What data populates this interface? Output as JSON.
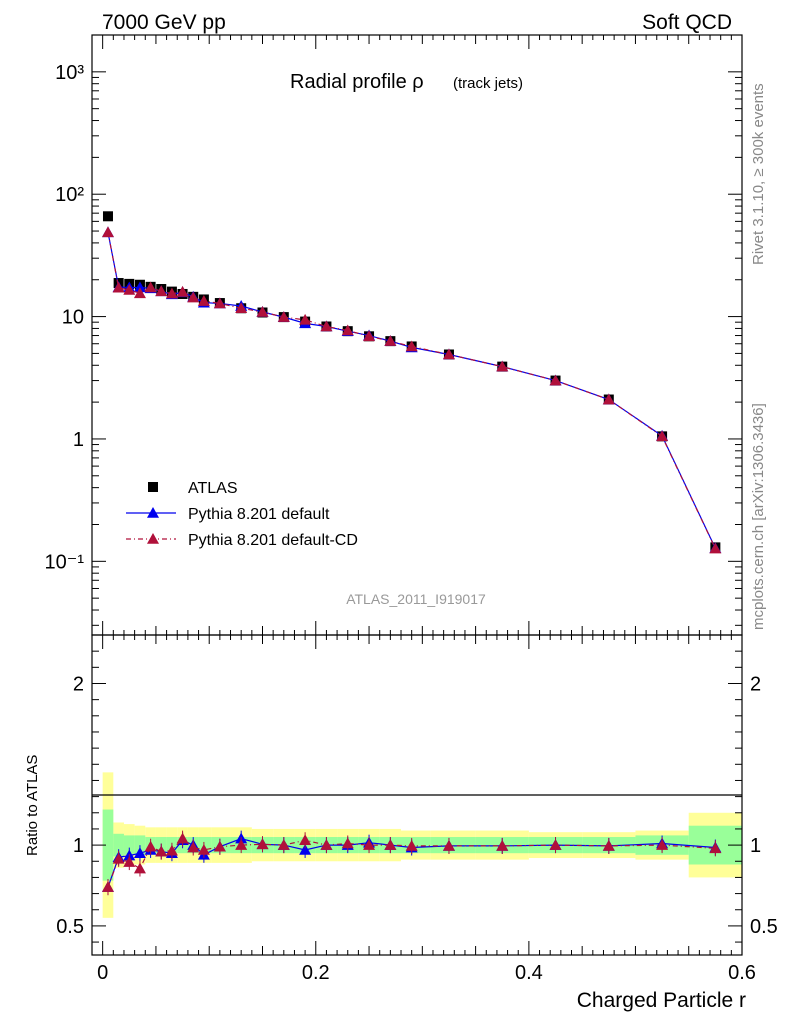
{
  "header": {
    "left": "7000 GeV pp",
    "right": "Soft QCD"
  },
  "side_labels": {
    "rivet": "Rivet 3.1.10, ≥ 300k events",
    "mcplots": "mcplots.cern.ch [arXiv:1306.3436]"
  },
  "chart_data": {
    "type": "line",
    "title_main": "Radial profile ρ",
    "title_sub": "(track jets)",
    "analysis_id": "ATLAS_2011_I919017",
    "xlabel": "Charged Particle r",
    "ylabel_ratio": "Ratio to ATLAS",
    "x_range": [
      -0.01,
      0.6
    ],
    "y_range_main": [
      0.025,
      2000
    ],
    "y_scale_main": "log",
    "y_range_ratio": [
      0.32,
      2.3
    ],
    "x_tick_labels": [
      "0",
      "0.2",
      "0.4",
      "0.6"
    ],
    "y_tick_labels_main": [
      "10⁻¹",
      "1",
      "10",
      "10²",
      "10³"
    ],
    "y_tick_labels_ratio": [
      "0.5",
      "1",
      "2"
    ],
    "legend_position": "lower-left",
    "x": [
      0.005,
      0.015,
      0.025,
      0.035,
      0.045,
      0.055,
      0.065,
      0.075,
      0.085,
      0.095,
      0.11,
      0.13,
      0.15,
      0.17,
      0.19,
      0.21,
      0.23,
      0.25,
      0.27,
      0.29,
      0.325,
      0.375,
      0.425,
      0.475,
      0.525,
      0.575
    ],
    "series": [
      {
        "name": "ATLAS",
        "color": "#000000",
        "marker": "square",
        "values": [
          66,
          18.8,
          18.5,
          18.2,
          17.5,
          16.8,
          16.0,
          15.3,
          14.5,
          13.8,
          12.9,
          11.7,
          10.8,
          9.9,
          9.1,
          8.3,
          7.6,
          6.9,
          6.3,
          5.7,
          4.9,
          3.9,
          3.0,
          2.1,
          1.05,
          0.13
        ],
        "ratio_band_inner": [
          0.22,
          0.07,
          0.06,
          0.06,
          0.05,
          0.05,
          0.05,
          0.05,
          0.05,
          0.05,
          0.05,
          0.05,
          0.05,
          0.05,
          0.05,
          0.05,
          0.05,
          0.05,
          0.05,
          0.05,
          0.05,
          0.05,
          0.05,
          0.05,
          0.06,
          0.12
        ],
        "ratio_band_outer": [
          0.45,
          0.14,
          0.13,
          0.12,
          0.11,
          0.11,
          0.11,
          0.11,
          0.11,
          0.11,
          0.11,
          0.11,
          0.1,
          0.1,
          0.1,
          0.1,
          0.1,
          0.1,
          0.1,
          0.09,
          0.09,
          0.09,
          0.08,
          0.08,
          0.09,
          0.2
        ]
      },
      {
        "name": "Pythia 8.201 default",
        "color": "#0000ee",
        "marker": "triangle",
        "line": "solid",
        "values": [
          48.8,
          17.4,
          17.3,
          17.3,
          17.0,
          16.1,
          15.2,
          15.8,
          14.5,
          13.0,
          12.8,
          12.2,
          10.9,
          9.9,
          8.8,
          8.3,
          7.6,
          7.0,
          6.3,
          5.6,
          4.9,
          3.9,
          3.0,
          2.1,
          1.06,
          0.128
        ],
        "ratio": [
          0.74,
          0.925,
          0.935,
          0.95,
          0.97,
          0.96,
          0.95,
          1.03,
          1.0,
          0.94,
          0.99,
          1.04,
          1.005,
          1.0,
          0.97,
          1.0,
          1.0,
          1.015,
          1.0,
          0.985,
          0.995,
          0.995,
          1.0,
          0.995,
          1.01,
          0.985
        ]
      },
      {
        "name": "Pythia 8.201 default-CD",
        "color": "#b0103a",
        "marker": "triangle",
        "line": "dash-dot",
        "values": [
          48.8,
          17.2,
          16.5,
          15.5,
          17.3,
          16.1,
          15.4,
          15.9,
          14.3,
          13.4,
          12.8,
          11.7,
          10.9,
          9.9,
          9.4,
          8.3,
          7.7,
          6.9,
          6.3,
          5.7,
          4.9,
          3.9,
          3.0,
          2.1,
          1.05,
          0.127
        ],
        "ratio": [
          0.74,
          0.915,
          0.895,
          0.855,
          0.99,
          0.96,
          0.965,
          1.04,
          0.985,
          0.97,
          0.99,
          1.0,
          1.005,
          1.0,
          1.03,
          1.0,
          1.01,
          1.0,
          1.0,
          0.995,
          0.995,
          0.995,
          1.0,
          0.995,
          1.0,
          0.98
        ]
      }
    ]
  }
}
